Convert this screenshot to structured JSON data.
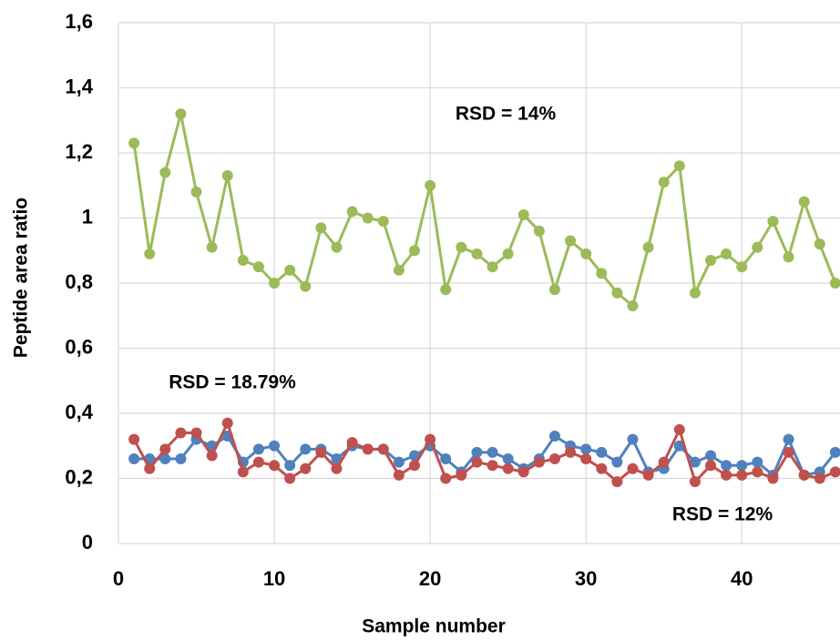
{
  "chart_data": {
    "type": "line",
    "x_label": "Sample number",
    "y_label": "Peptide area ratio",
    "annotations": [
      "RSD = 14%",
      "RSD = 18.79%",
      "RSD = 12%"
    ],
    "x": [
      1,
      2,
      3,
      4,
      5,
      6,
      7,
      8,
      9,
      10,
      11,
      12,
      13,
      14,
      15,
      16,
      17,
      18,
      19,
      20,
      21,
      22,
      23,
      24,
      25,
      26,
      27,
      28,
      29,
      30,
      31,
      32,
      33,
      34,
      35,
      36,
      37,
      38,
      39,
      40,
      41,
      42,
      43,
      44,
      45,
      46
    ],
    "series": [
      {
        "color": "#9bbb59",
        "values": [
          1.23,
          0.89,
          1.14,
          1.32,
          1.08,
          0.91,
          1.13,
          0.87,
          0.85,
          0.8,
          0.84,
          0.79,
          0.97,
          0.91,
          1.02,
          1.0,
          0.99,
          0.84,
          0.9,
          1.1,
          0.78,
          0.91,
          0.89,
          0.85,
          0.89,
          1.01,
          0.96,
          0.78,
          0.93,
          0.89,
          0.83,
          0.77,
          0.73,
          0.91,
          1.11,
          1.16,
          0.77,
          0.87,
          0.89,
          0.85,
          0.91,
          0.99,
          0.88,
          1.05,
          0.92,
          0.8
        ]
      },
      {
        "color": "#4f81bd",
        "values": [
          0.26,
          0.26,
          0.26,
          0.26,
          0.32,
          0.3,
          0.33,
          0.25,
          0.29,
          0.3,
          0.24,
          0.29,
          0.29,
          0.26,
          0.3,
          0.29,
          0.29,
          0.25,
          0.27,
          0.3,
          0.26,
          0.22,
          0.28,
          0.28,
          0.26,
          0.23,
          0.26,
          0.33,
          0.3,
          0.29,
          0.28,
          0.25,
          0.32,
          0.22,
          0.23,
          0.3,
          0.25,
          0.27,
          0.24,
          0.24,
          0.25,
          0.21,
          0.32,
          0.21,
          0.22,
          0.28
        ]
      },
      {
        "color": "#c0504d",
        "values": [
          0.32,
          0.23,
          0.29,
          0.34,
          0.34,
          0.27,
          0.37,
          0.22,
          0.25,
          0.24,
          0.2,
          0.23,
          0.28,
          0.23,
          0.31,
          0.29,
          0.29,
          0.21,
          0.24,
          0.32,
          0.2,
          0.21,
          0.25,
          0.24,
          0.23,
          0.22,
          0.25,
          0.26,
          0.28,
          0.26,
          0.23,
          0.19,
          0.23,
          0.21,
          0.25,
          0.35,
          0.19,
          0.24,
          0.21,
          0.21,
          0.22,
          0.2,
          0.28,
          0.21,
          0.2,
          0.22
        ]
      }
    ],
    "xlim": [
      0,
      46.3
    ],
    "xticks": [
      0,
      10,
      20,
      30,
      40
    ],
    "ylim": [
      0,
      1.6
    ],
    "yticks": [
      0,
      {
        "value": 0.2,
        "label": "0,2"
      },
      {
        "value": 0.4,
        "label": "0,4"
      },
      {
        "value": 0.6,
        "label": "0,6"
      },
      {
        "value": 0.8,
        "label": "0,8"
      },
      1,
      {
        "value": 1.2,
        "label": "1,2"
      },
      {
        "value": 1.4,
        "label": "1,4"
      },
      {
        "value": 1.6,
        "label": "1,6"
      }
    ],
    "grid": true
  }
}
